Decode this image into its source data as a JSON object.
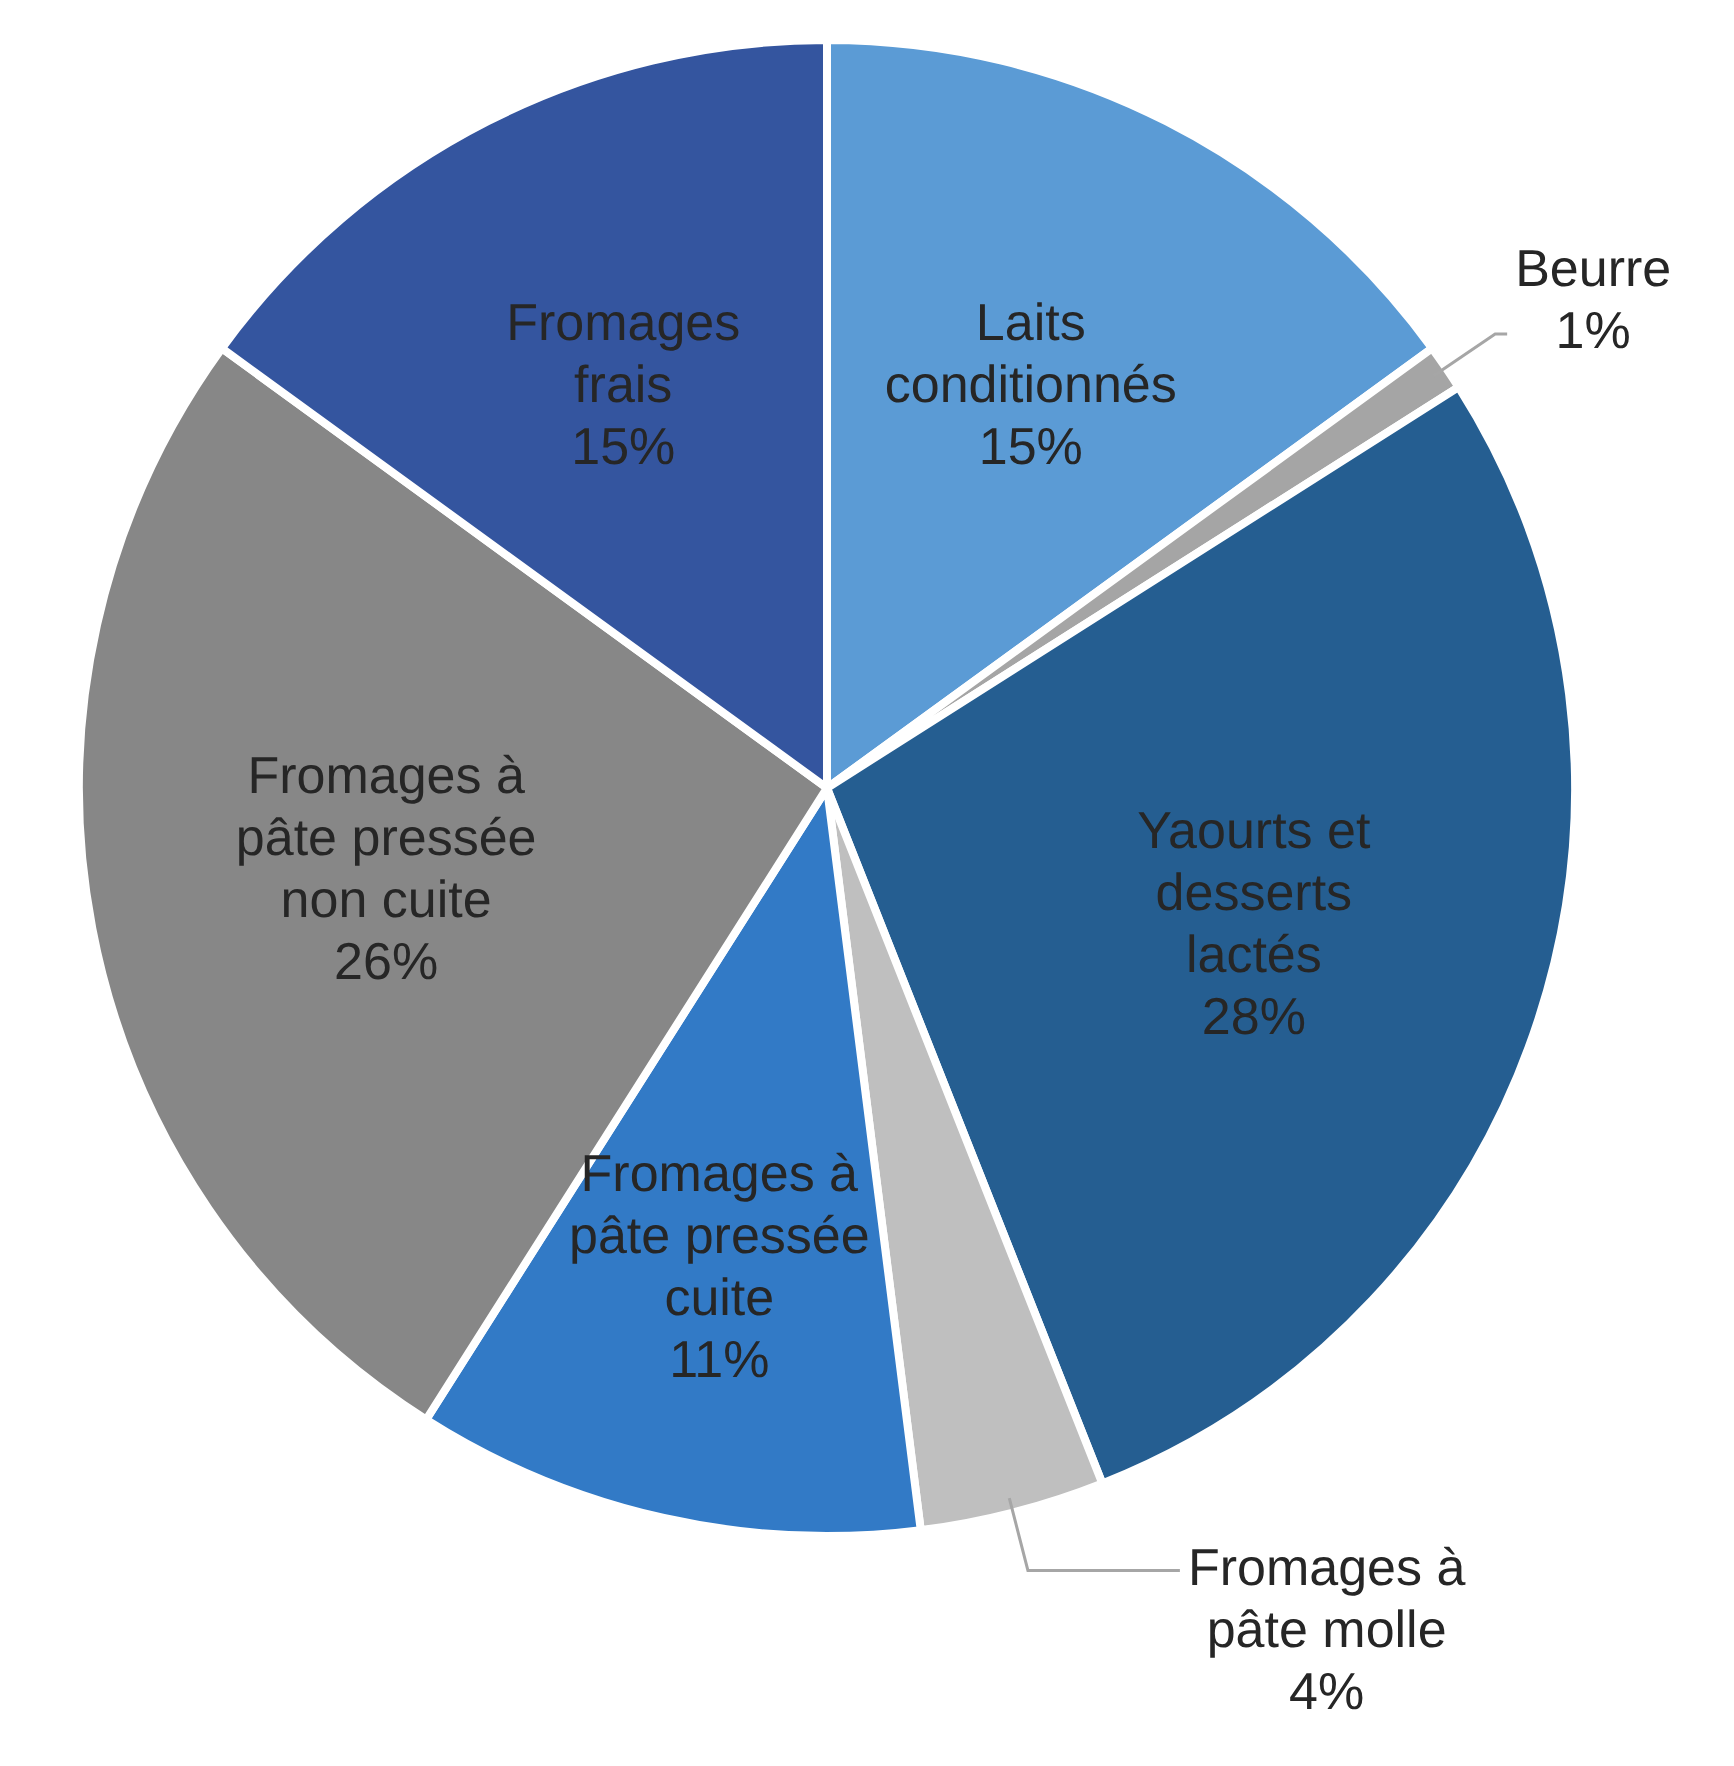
{
  "chart_data": {
    "type": "pie",
    "categories": [
      "Laits conditionnés",
      "Beurre",
      "Yaourts et desserts lactés",
      "Fromages à pâte molle",
      "Fromages à pâte pressée cuite",
      "Fromages à pâte pressée non cuite",
      "Fromages frais"
    ],
    "values": [
      15,
      1,
      28,
      4,
      11,
      26,
      15
    ],
    "value_labels": [
      "15%",
      "1%",
      "28%",
      "4%",
      "11%",
      "26%",
      "15%"
    ],
    "colors": [
      "#5b9bd5",
      "#a5a5a5",
      "#255e91",
      "#bfbfbf",
      "#327ac6",
      "#878787",
      "#34559f"
    ],
    "legend": false
  }
}
